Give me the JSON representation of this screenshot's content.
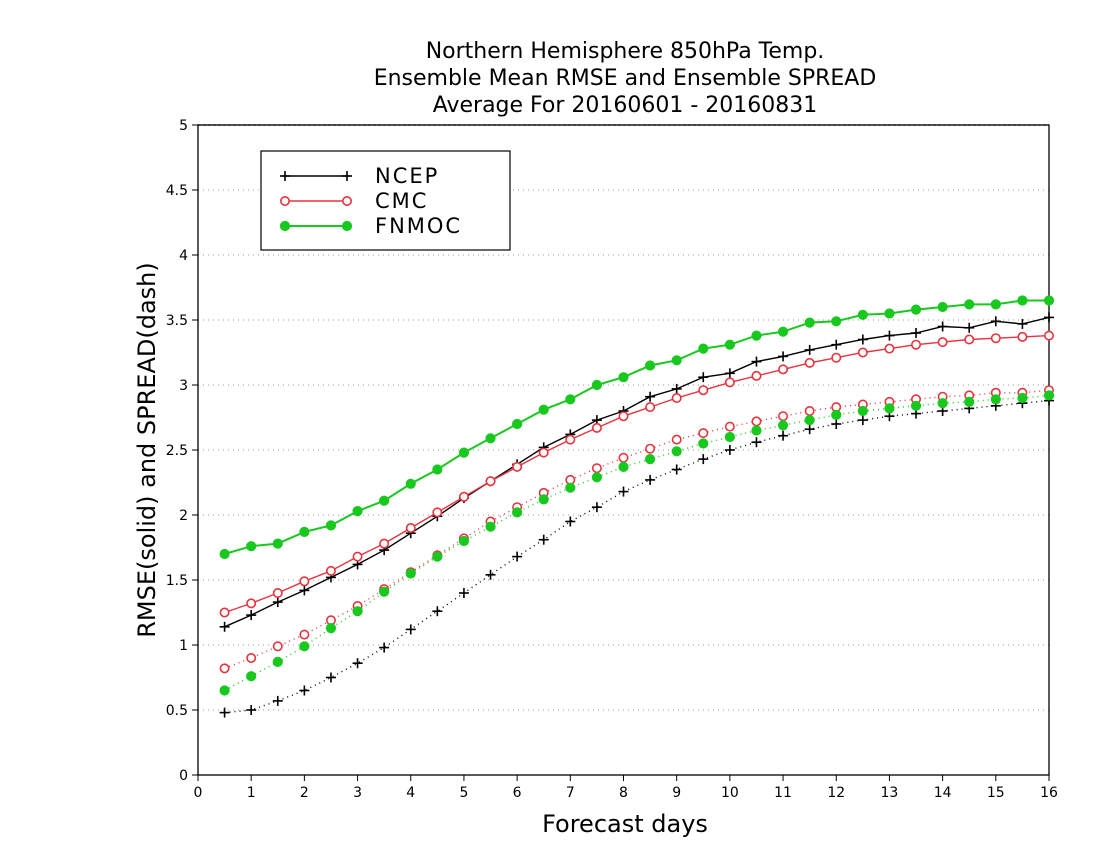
{
  "chart_data": {
    "type": "line",
    "title_lines": [
      "Northern Hemisphere 850hPa Temp.",
      "Ensemble Mean RMSE and Ensemble SPREAD",
      "Average For 20160601 - 20160831"
    ],
    "xlabel": "Forecast days",
    "ylabel": "RMSE(solid) and SPREAD(dash)",
    "xlim": [
      0,
      16
    ],
    "ylim": [
      0,
      5
    ],
    "x_ticks": [
      0,
      1,
      2,
      3,
      4,
      5,
      6,
      7,
      8,
      9,
      10,
      11,
      12,
      13,
      14,
      15,
      16
    ],
    "y_ticks": [
      0,
      0.5,
      1,
      1.5,
      2,
      2.5,
      3,
      3.5,
      4,
      4.5,
      5
    ],
    "grid": "horizontal dotted",
    "legend_position": "top-left",
    "x": [
      0.5,
      1,
      1.5,
      2,
      2.5,
      3,
      3.5,
      4,
      4.5,
      5,
      5.5,
      6,
      6.5,
      7,
      7.5,
      8,
      8.5,
      9,
      9.5,
      10,
      10.5,
      11,
      11.5,
      12,
      12.5,
      13,
      13.5,
      14,
      14.5,
      15,
      15.5,
      16
    ],
    "series": [
      {
        "name": "NCEP",
        "color": "#000000",
        "marker": "plus",
        "rmse": [
          1.14,
          1.23,
          1.33,
          1.42,
          1.52,
          1.62,
          1.73,
          1.86,
          1.99,
          2.13,
          2.26,
          2.39,
          2.52,
          2.62,
          2.73,
          2.8,
          2.91,
          2.97,
          3.06,
          3.09,
          3.18,
          3.22,
          3.27,
          3.31,
          3.35,
          3.38,
          3.4,
          3.45,
          3.44,
          3.49,
          3.47,
          3.52
        ],
        "spread": [
          0.48,
          0.5,
          0.57,
          0.65,
          0.75,
          0.86,
          0.98,
          1.12,
          1.26,
          1.4,
          1.54,
          1.68,
          1.81,
          1.95,
          2.06,
          2.18,
          2.27,
          2.35,
          2.43,
          2.5,
          2.56,
          2.61,
          2.66,
          2.7,
          2.73,
          2.76,
          2.78,
          2.8,
          2.82,
          2.84,
          2.86,
          2.88
        ]
      },
      {
        "name": "CMC",
        "color": "#e8323c",
        "marker": "open-circle",
        "rmse": [
          1.25,
          1.32,
          1.4,
          1.49,
          1.57,
          1.68,
          1.78,
          1.9,
          2.02,
          2.14,
          2.26,
          2.37,
          2.48,
          2.58,
          2.67,
          2.76,
          2.83,
          2.9,
          2.96,
          3.02,
          3.07,
          3.12,
          3.17,
          3.21,
          3.25,
          3.28,
          3.31,
          3.33,
          3.35,
          3.36,
          3.37,
          3.38
        ],
        "spread": [
          0.82,
          0.9,
          0.99,
          1.08,
          1.19,
          1.3,
          1.43,
          1.56,
          1.69,
          1.82,
          1.95,
          2.06,
          2.17,
          2.27,
          2.36,
          2.44,
          2.51,
          2.58,
          2.63,
          2.68,
          2.72,
          2.76,
          2.8,
          2.83,
          2.85,
          2.87,
          2.89,
          2.91,
          2.92,
          2.94,
          2.94,
          2.96
        ]
      },
      {
        "name": "FNMOC",
        "color": "#18c81e",
        "marker": "filled-circle",
        "rmse": [
          1.7,
          1.76,
          1.78,
          1.87,
          1.92,
          2.03,
          2.11,
          2.24,
          2.35,
          2.48,
          2.59,
          2.7,
          2.81,
          2.89,
          3.0,
          3.06,
          3.15,
          3.19,
          3.28,
          3.31,
          3.38,
          3.41,
          3.48,
          3.49,
          3.54,
          3.55,
          3.58,
          3.6,
          3.62,
          3.62,
          3.65,
          3.65
        ],
        "spread": [
          0.65,
          0.76,
          0.87,
          0.99,
          1.13,
          1.26,
          1.41,
          1.55,
          1.68,
          1.8,
          1.91,
          2.02,
          2.12,
          2.21,
          2.29,
          2.37,
          2.43,
          2.49,
          2.55,
          2.6,
          2.65,
          2.69,
          2.73,
          2.77,
          2.8,
          2.82,
          2.84,
          2.86,
          2.87,
          2.89,
          2.9,
          2.92
        ]
      }
    ]
  }
}
